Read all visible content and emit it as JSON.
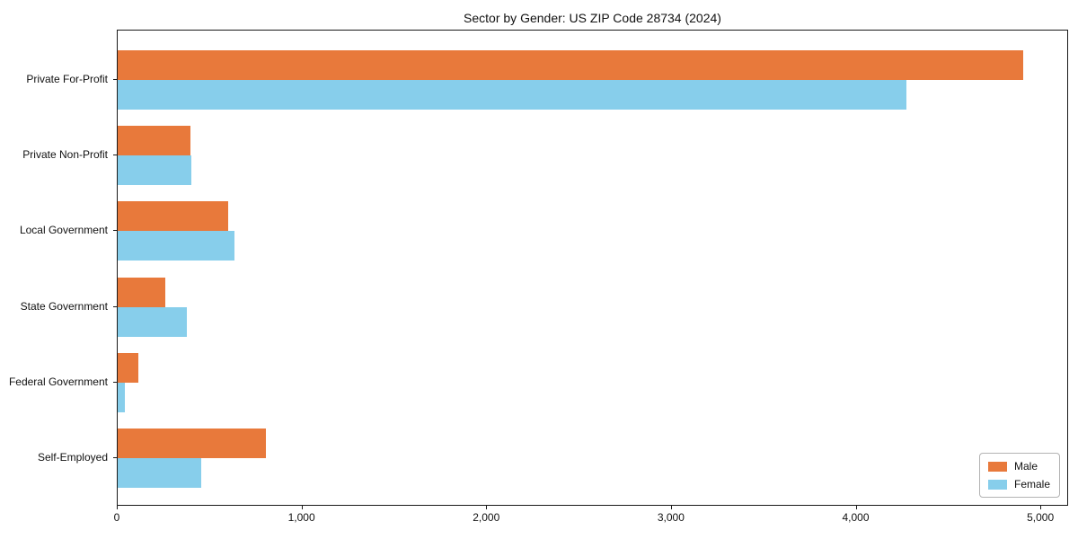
{
  "title": "Sector by Gender: US ZIP Code 28734 (2024)",
  "chart_data": {
    "type": "bar",
    "orientation": "horizontal",
    "title": "Sector by Gender: US ZIP Code 28734 (2024)",
    "categories": [
      "Private For-Profit",
      "Private Non-Profit",
      "Local Government",
      "State Government",
      "Federal Government",
      "Self-Employed"
    ],
    "series": [
      {
        "name": "Male",
        "color": "#e8793b",
        "values": [
          4900,
          395,
          600,
          260,
          110,
          800
        ]
      },
      {
        "name": "Female",
        "color": "#87ceeb",
        "values": [
          4270,
          400,
          630,
          375,
          40,
          450
        ]
      }
    ],
    "xlabel": "",
    "ylabel": "",
    "xlim": [
      0,
      5150
    ],
    "x_ticks": [
      0,
      1000,
      2000,
      3000,
      4000,
      5000
    ],
    "x_tick_labels": [
      "0",
      "1,000",
      "2,000",
      "3,000",
      "4,000",
      "5,000"
    ],
    "grid": false,
    "legend_position": "lower right",
    "background_color": "#ffffff",
    "axis_color": "#1a1a1a"
  }
}
